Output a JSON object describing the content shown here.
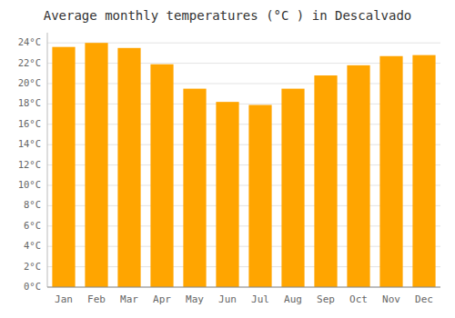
{
  "chart_data": {
    "type": "bar",
    "title": "Average monthly temperatures (°C ) in Descalvado",
    "categories": [
      "Jan",
      "Feb",
      "Mar",
      "Apr",
      "May",
      "Jun",
      "Jul",
      "Aug",
      "Sep",
      "Oct",
      "Nov",
      "Dec"
    ],
    "values": [
      23.6,
      24.0,
      23.5,
      21.9,
      19.5,
      18.2,
      17.9,
      19.5,
      20.8,
      21.8,
      22.7,
      22.8
    ],
    "color": "#FFA500",
    "ylim": [
      0,
      25
    ],
    "yticks": [
      {
        "value": 0,
        "label": "0°C"
      },
      {
        "value": 2,
        "label": "2°C"
      },
      {
        "value": 4,
        "label": "4°C"
      },
      {
        "value": 6,
        "label": "6°C"
      },
      {
        "value": 8,
        "label": "8°C"
      },
      {
        "value": 10,
        "label": "10°C"
      },
      {
        "value": 12,
        "label": "12°C"
      },
      {
        "value": 14,
        "label": "14°C"
      },
      {
        "value": 16,
        "label": "16°C"
      },
      {
        "value": 18,
        "label": "18°C"
      },
      {
        "value": 20,
        "label": "20°C"
      },
      {
        "value": 22,
        "label": "22°C"
      },
      {
        "value": 24,
        "label": "24°C"
      }
    ],
    "grid": true
  }
}
